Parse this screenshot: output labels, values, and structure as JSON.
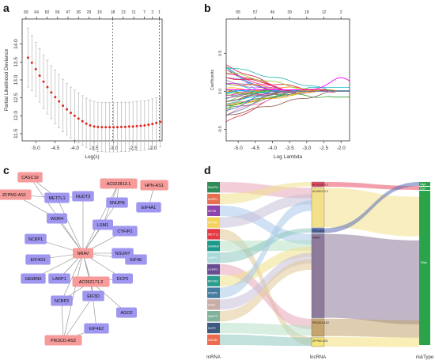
{
  "panel_labels": [
    "a",
    "b",
    "c",
    "d"
  ],
  "chart_data": [
    {
      "type": "scatter",
      "panel": "a",
      "xlabel": "Log(λ)",
      "ylabel": "Partial Likelihood Deviance",
      "xlim": [
        -5.35,
        -1.75
      ],
      "ylim": [
        11.3,
        14.7
      ],
      "xticks": [
        "-5.0",
        "-4.5",
        "-4.0",
        "-3.5",
        "-3.0",
        "-2.5",
        "-2.0"
      ],
      "xtick_values": [
        -5.0,
        -4.5,
        -4.0,
        -3.5,
        -3.0,
        -2.5,
        -2.0
      ],
      "yticks": [
        "11.5",
        "12.0",
        "12.5",
        "13.0",
        "13.5",
        "14.0"
      ],
      "ytick_values": [
        11.5,
        12.0,
        12.5,
        13.0,
        13.5,
        14.0
      ],
      "top_tick_labels": [
        "69",
        "64",
        "60",
        "56",
        "47",
        "36",
        "29",
        "19",
        "18",
        "13",
        "11",
        "7",
        "2",
        "1"
      ],
      "top_tick_values": [
        -5.25,
        -4.98,
        -4.71,
        -4.44,
        -4.17,
        -3.9,
        -3.63,
        -3.36,
        -3.02,
        -2.75,
        -2.48,
        -2.21,
        -2.0,
        -1.82
      ],
      "vlines": [
        -3.02,
        -1.82
      ],
      "x": [
        -5.2,
        -5.1,
        -5.0,
        -4.9,
        -4.8,
        -4.7,
        -4.6,
        -4.5,
        -4.4,
        -4.3,
        -4.2,
        -4.1,
        -4.0,
        -3.9,
        -3.8,
        -3.7,
        -3.6,
        -3.5,
        -3.4,
        -3.3,
        -3.2,
        -3.1,
        -3.0,
        -2.9,
        -2.8,
        -2.7,
        -2.6,
        -2.5,
        -2.4,
        -2.3,
        -2.2,
        -2.1,
        -2.0,
        -1.9,
        -1.8
      ],
      "y": [
        13.62,
        13.48,
        13.3,
        13.12,
        12.95,
        12.8,
        12.65,
        12.52,
        12.4,
        12.28,
        12.18,
        12.08,
        12.0,
        11.92,
        11.85,
        11.78,
        11.73,
        11.7,
        11.69,
        11.68,
        11.68,
        11.68,
        11.68,
        11.68,
        11.69,
        11.69,
        11.7,
        11.7,
        11.71,
        11.72,
        11.73,
        11.75,
        11.77,
        11.8,
        11.83
      ],
      "err_upper": [
        14.45,
        14.25,
        14.05,
        13.88,
        13.7,
        13.55,
        13.4,
        13.28,
        13.15,
        13.02,
        12.9,
        12.8,
        12.72,
        12.64,
        12.56,
        12.49,
        12.44,
        12.4,
        12.38,
        12.37,
        12.37,
        12.37,
        12.37,
        12.37,
        12.38,
        12.38,
        12.38,
        12.39,
        12.4,
        12.41,
        12.42,
        12.44,
        12.47,
        12.5,
        12.53
      ],
      "err_lower": [
        12.8,
        12.7,
        12.55,
        12.38,
        12.2,
        12.05,
        11.92,
        11.78,
        11.66,
        11.55,
        11.47,
        11.38,
        11.32,
        11.25,
        11.18,
        11.12,
        11.06,
        11.03,
        11.0,
        11.0,
        10.99,
        10.99,
        10.99,
        10.99,
        11.0,
        11.0,
        11.01,
        11.02,
        11.02,
        11.03,
        11.04,
        11.06,
        11.08,
        11.1,
        11.13
      ],
      "point_color": "#e3261e"
    },
    {
      "type": "line",
      "panel": "b",
      "xlabel": "Log Lambda",
      "ylabel": "Coefficients",
      "xlim": [
        -5.35,
        -1.75
      ],
      "ylim": [
        -0.65,
        0.95
      ],
      "xticks": [
        "-5.0",
        "-4.5",
        "-4.0",
        "-3.5",
        "-3.0",
        "-2.5",
        "-2.0"
      ],
      "xtick_values": [
        -5.0,
        -4.5,
        -4.0,
        -3.5,
        -3.0,
        -2.5,
        -2.0
      ],
      "yticks": [
        "-0.5",
        "0.0",
        "0.5"
      ],
      "ytick_values": [
        -0.5,
        0.0,
        0.5
      ],
      "top_tick_labels": [
        "65",
        "57",
        "46",
        "29",
        "18",
        "12",
        "2"
      ],
      "top_tick_values": [
        -5.0,
        -4.5,
        -4.0,
        -3.5,
        -3.0,
        -2.5,
        -2.0
      ],
      "series_count": 40
    }
  ],
  "network": {
    "hub": "NRAV",
    "lncrna_nodes": [
      "CASC19",
      "AC022813.1",
      "HPN-AS1",
      "ZFPM2-AS1",
      "NRAV",
      "AC092171.2",
      "PIK3CD-AS2"
    ],
    "mrna_nodes": [
      "NUDT3",
      "SNUPN",
      "EIF4A1",
      "METTL1",
      "LSM1",
      "CYFIP1",
      "WDR4",
      "NCBP1",
      "NSUN2",
      "EIF4G3",
      "EIF4E",
      "LARP1",
      "GEMIN5",
      "DCP2",
      "NCBP2",
      "EIF3D",
      "AGO2",
      "EIF4E2"
    ],
    "lnc_color": "#f79a9a",
    "mrna_color": "#9f96f0"
  },
  "sankey": {
    "axis_labels": [
      "mRNA",
      "lncRNA",
      "riskType"
    ],
    "mrna_labels": [
      "SNUPN",
      "NCBP1",
      "EIF3D",
      "EIF4A1",
      "METTL1",
      "GEMIN5",
      "LARP1",
      "CYFIP1",
      "EIF4G3",
      "NCBP2",
      "LSM1",
      "NUDT3",
      "DCP2",
      "NSUN2"
    ],
    "lnc_labels": [
      "AC022813.1",
      "AC092171.2",
      "HPN-AS1",
      "NRAV",
      "PIK3CD-AS2",
      "ZFPM2-AS1"
    ],
    "risk_labels": [
      "High",
      "Low",
      "Risk"
    ],
    "node_colors": [
      "#2e8b57",
      "#e76f51",
      "#8e44ad",
      "#f4d35e",
      "#e63946",
      "#1b998b",
      "#a8dadc",
      "#6a4c93",
      "#2a9d8f",
      "#457b9d",
      "#c9ada7",
      "#81b29a",
      "#3d5a80",
      "#ee6c4d"
    ]
  }
}
